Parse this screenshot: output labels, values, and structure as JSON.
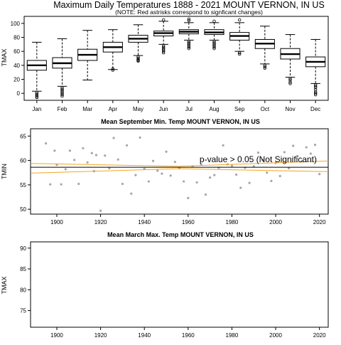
{
  "colors": {
    "box": "#000000",
    "scatter": "#a6a6a6",
    "trend": "#000000",
    "confidence_band": "#f5a623",
    "background": "#ffffff"
  },
  "chart_data": [
    {
      "type": "boxplot",
      "title": "Maximum Daily Temperatures 1888 - 2021 MOUNT VERNON, IN US",
      "subtitle": "(NOTE: Red astrisks correspond to signficant changes)",
      "xlabel": "",
      "ylabel": "TMAX",
      "ylim": [
        -10,
        110
      ],
      "yticks": [
        0,
        20,
        40,
        60,
        80,
        100
      ],
      "categories": [
        "Jan",
        "Feb",
        "Mar",
        "Apr",
        "May",
        "Jun",
        "Jul",
        "Aug",
        "Sep",
        "Oct",
        "Nov",
        "Dec"
      ],
      "boxes": [
        {
          "whisker_low": 3,
          "q1": 33,
          "median": 40,
          "q3": 47,
          "whisker_high": 73,
          "outliers": [
            1,
            -1,
            -3,
            -5,
            -6
          ]
        },
        {
          "whisker_low": 10,
          "q1": 36,
          "median": 43,
          "q3": 51,
          "whisker_high": 78,
          "outliers": [
            8,
            6,
            4,
            2,
            0,
            -2,
            -4
          ]
        },
        {
          "whisker_low": 19,
          "q1": 47,
          "median": 55,
          "q3": 63,
          "whisker_high": 90,
          "outliers": []
        },
        {
          "whisker_low": 34,
          "q1": 59,
          "median": 66,
          "q3": 73,
          "whisker_high": 91,
          "outliers": [
            33,
            35
          ]
        },
        {
          "whisker_low": 54,
          "q1": 73,
          "median": 78,
          "q3": 83,
          "whisker_high": 98,
          "outliers": [
            52,
            50,
            48,
            47,
            46
          ]
        },
        {
          "whisker_low": 70,
          "q1": 82,
          "median": 86,
          "q3": 89,
          "whisker_high": 103,
          "outliers": [
            68,
            66,
            64,
            62,
            60,
            58,
            105
          ]
        },
        {
          "whisker_low": 76,
          "q1": 85,
          "median": 88,
          "q3": 91,
          "whisker_high": 101,
          "outliers": [
            74,
            72,
            70,
            68,
            66,
            64,
            104,
            106
          ]
        },
        {
          "whisker_low": 76,
          "q1": 84,
          "median": 87,
          "q3": 91,
          "whisker_high": 101,
          "outliers": [
            74,
            72,
            70,
            68,
            66,
            64,
            103
          ]
        },
        {
          "whisker_low": 60,
          "q1": 76,
          "median": 82,
          "q3": 87,
          "whisker_high": 101,
          "outliers": [
            58,
            56,
            105
          ]
        },
        {
          "whisker_low": 42,
          "q1": 64,
          "median": 71,
          "q3": 77,
          "whisker_high": 96,
          "outliers": [
            40,
            38,
            36
          ]
        },
        {
          "whisker_low": 23,
          "q1": 49,
          "median": 56,
          "q3": 64,
          "whisker_high": 84,
          "outliers": [
            21,
            19,
            16,
            14
          ]
        },
        {
          "whisker_low": 14,
          "q1": 38,
          "median": 45,
          "q3": 52,
          "whisker_high": 77,
          "outliers": [
            12,
            10,
            8,
            5,
            2,
            0,
            -2
          ]
        }
      ]
    },
    {
      "type": "scatter",
      "title": "Mean September Min. Temp MOUNT VERNON, IN US",
      "xlabel": "",
      "ylabel": "TMIN",
      "xlim": [
        1888,
        2024
      ],
      "ylim": [
        49,
        66.5
      ],
      "xticks": [
        1900,
        1920,
        1940,
        1960,
        1980,
        2000,
        2020
      ],
      "yticks": [
        50,
        55,
        60,
        65
      ],
      "annotation": "p-value > 0.05 (Not Significant)",
      "trend": {
        "x": [
          1888,
          2024
        ],
        "y": [
          58.6,
          58.6
        ]
      },
      "band_upper": {
        "x": [
          1888,
          1955,
          2024
        ],
        "y": [
          59.4,
          58.8,
          59.9
        ]
      },
      "band_lower": {
        "x": [
          1888,
          1955,
          2024
        ],
        "y": [
          57.4,
          58.3,
          57.7
        ]
      },
      "points": {
        "x": [
          1895,
          1897,
          1899,
          1900,
          1902,
          1904,
          1906,
          1908,
          1910,
          1912,
          1914,
          1916,
          1917,
          1918,
          1920,
          1922,
          1924,
          1926,
          1928,
          1930,
          1932,
          1934,
          1936,
          1938,
          1940,
          1942,
          1944,
          1946,
          1948,
          1950,
          1952,
          1954,
          1956,
          1958,
          1960,
          1962,
          1964,
          1966,
          1968,
          1970,
          1972,
          1974,
          1976,
          1978,
          1980,
          1982,
          1984,
          1986,
          1988,
          1990,
          1992,
          1994,
          1996,
          1998,
          2000,
          2002,
          2004,
          2006,
          2008,
          2010,
          2012,
          2014,
          2016,
          2018,
          2020
        ],
        "y": [
          63.5,
          55.1,
          62.0,
          59.1,
          55.1,
          58.2,
          62.0,
          60.1,
          55.2,
          62.5,
          59.6,
          61.5,
          57.8,
          61.1,
          49.7,
          61.0,
          58.4,
          64.6,
          60.2,
          55.2,
          63.1,
          53.2,
          57.0,
          64.7,
          58.3,
          55.7,
          59.9,
          57.9,
          57.3,
          61.8,
          56.9,
          59.7,
          58.4,
          55.7,
          52.3,
          58.8,
          55.5,
          59.2,
          53.0,
          56.5,
          57.0,
          58.5,
          63.1,
          59.2,
          58.9,
          57.1,
          54.4,
          58.5,
          55.4,
          58.8,
          61.6,
          60.1,
          57.5,
          55.8,
          59.5,
          56.8,
          61.7,
          58.4,
          63.0,
          60.9,
          59.8,
          62.7,
          61.4,
          63.2,
          57.2
        ]
      }
    },
    {
      "type": "scatter",
      "title": "Mean March Max. Temp MOUNT VERNON, IN US",
      "xlabel": "",
      "ylabel": "TMAX",
      "xlim": [
        1888,
        2024
      ],
      "ylim": [
        71,
        91.5
      ],
      "xticks": [
        1900,
        1920,
        1940,
        1960,
        1980,
        2000,
        2020
      ],
      "yticks": [
        75,
        80,
        85,
        90
      ],
      "points": {
        "x": [],
        "y": []
      }
    }
  ]
}
